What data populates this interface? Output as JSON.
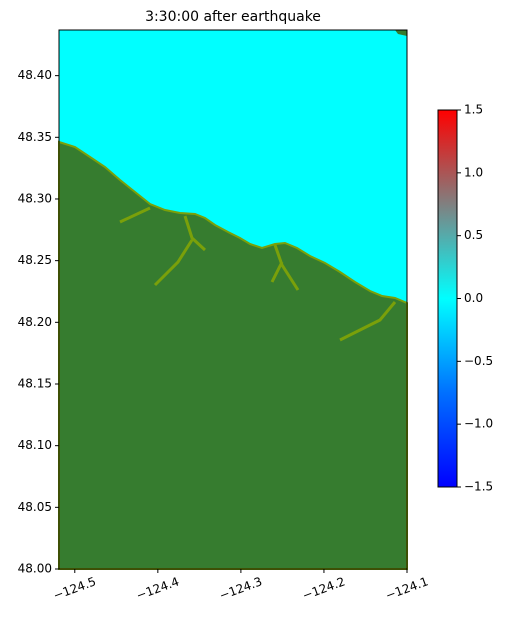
{
  "chart_data": {
    "type": "raster",
    "title": "3:30:00 after earthquake",
    "xlim": [
      -124.519,
      -124.1
    ],
    "ylim": [
      48.0,
      48.437
    ],
    "xticks": [
      {
        "value": -124.5,
        "label": "−124.5"
      },
      {
        "value": -124.4,
        "label": "−124.4"
      },
      {
        "value": -124.3,
        "label": "−124.3"
      },
      {
        "value": -124.2,
        "label": "−124.2"
      },
      {
        "value": -124.1,
        "label": "−124.1"
      }
    ],
    "yticks": [
      {
        "value": 48.0,
        "label": "48.00"
      },
      {
        "value": 48.05,
        "label": "48.05"
      },
      {
        "value": 48.1,
        "label": "48.10"
      },
      {
        "value": 48.15,
        "label": "48.15"
      },
      {
        "value": 48.2,
        "label": "48.20"
      },
      {
        "value": 48.25,
        "label": "48.25"
      },
      {
        "value": 48.3,
        "label": "48.30"
      },
      {
        "value": 48.35,
        "label": "48.35"
      },
      {
        "value": 48.4,
        "label": "48.40"
      }
    ],
    "colorbar": {
      "lim": [
        -1.5,
        1.5
      ],
      "stops": [
        {
          "value": -1.5,
          "color": "#0000ff"
        },
        {
          "value": -0.75,
          "color": "#0070ff"
        },
        {
          "value": 0,
          "color": "#00ffff"
        },
        {
          "value": 0.75,
          "color": "#808080"
        },
        {
          "value": 1.5,
          "color": "#ff0000"
        }
      ],
      "ticks": [
        1.5,
        {
          "value": 1.0,
          "label": "1.0"
        },
        0.5,
        {
          "value": 0.0,
          "label": "0.0"
        },
        {
          "value": -0.5,
          "label": "−0.5"
        },
        {
          "value": -1.0,
          "label": "−1.0"
        },
        {
          "value": -1.5,
          "label": "−1.5"
        }
      ]
    }
  }
}
